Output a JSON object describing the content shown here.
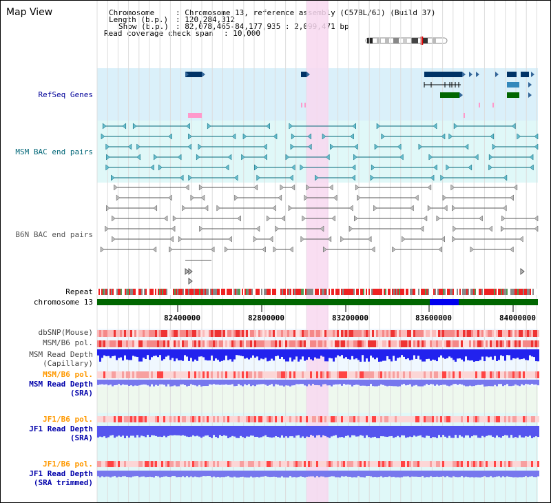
{
  "title": "Map View",
  "info": {
    "chromosome_key": "Chromosome",
    "chromosome_val": ": Chromosome 13, reference assembly (C57BL/6J) (Build 37)",
    "length_key": "Length (b.p.)",
    "length_val": ": 120,284,312",
    "show_key": "Show (b.p.)",
    "show_val": ": 82,078,465-84,177,935 : 2,099,471 bp",
    "coverage_key": "Read coverage check span",
    "coverage_val": ": 10,000"
  },
  "tracks": {
    "refseq": {
      "label": "RefSeq Genes",
      "color": "#000099"
    },
    "msm_bac": {
      "label": "MSM BAC end pairs",
      "color": "#006677"
    },
    "b6n_bac": {
      "label": "B6N BAC end pairs",
      "color": "#555555"
    },
    "repeat": {
      "label": "Repeat"
    },
    "chromosome": {
      "label": "chromosome 13"
    },
    "dbsnp": {
      "label": "dbSNP(Mouse)"
    },
    "msm_b6_pol_1": {
      "label": "MSM/B6 pol."
    },
    "msm_depth_cap": {
      "label1": "MSM Read Depth",
      "label2": "(Capillary)"
    },
    "msm_b6_pol_2": {
      "label": "MSM/B6 pol.",
      "color": "#ff9900"
    },
    "msm_depth_sra": {
      "label1": "MSM Read Depth",
      "label2": "(SRA)",
      "color": "#0000aa"
    },
    "jf1_b6_pol_1": {
      "label": "JF1/B6 pol.",
      "color": "#ff9900"
    },
    "jf1_depth_sra": {
      "label1": "JF1 Read Depth",
      "label2": "(SRA)",
      "color": "#0000aa"
    },
    "jf1_b6_pol_2": {
      "label": "JF1/B6 pol.",
      "color": "#ff9900"
    },
    "jf1_depth_trim": {
      "label1": "JF1 Read Depth",
      "label2": "(SRA trimmed)",
      "color": "#0000aa"
    }
  },
  "axis": {
    "ticks": [
      "82400000",
      "82800000",
      "83200000",
      "83600000",
      "84000000"
    ]
  },
  "colors": {
    "highlight": "#f8d8f0",
    "refseq_bg": "#daf0fa",
    "bac_bg": "#e0f8f8",
    "chrom_green": "#006600",
    "chrom_blue": "#0000ee",
    "depth_blue": "#2222ee"
  }
}
